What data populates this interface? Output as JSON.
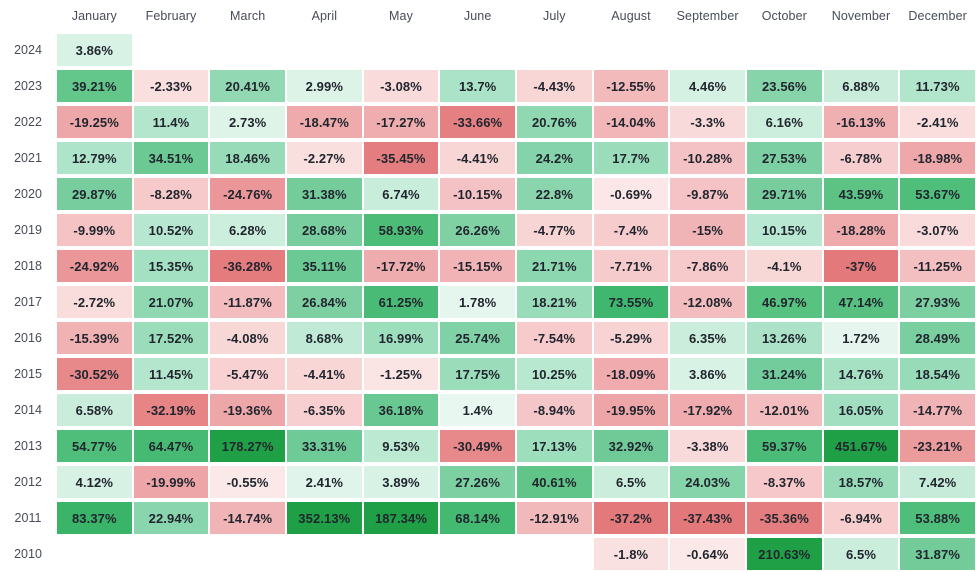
{
  "chart_data": {
    "type": "heatmap",
    "title": "",
    "value_suffix": "%",
    "columns": [
      "January",
      "February",
      "March",
      "April",
      "May",
      "June",
      "July",
      "August",
      "September",
      "October",
      "November",
      "December"
    ],
    "rows": [
      "2024",
      "2023",
      "2022",
      "2021",
      "2020",
      "2019",
      "2018",
      "2017",
      "2016",
      "2015",
      "2014",
      "2013",
      "2012",
      "2011",
      "2010"
    ],
    "values": [
      [
        3.86,
        null,
        null,
        null,
        null,
        null,
        null,
        null,
        null,
        null,
        null,
        null
      ],
      [
        39.21,
        -2.33,
        20.41,
        2.99,
        -3.08,
        13.7,
        -4.43,
        -12.55,
        4.46,
        23.56,
        6.88,
        11.73
      ],
      [
        -19.25,
        11.4,
        2.73,
        -18.47,
        -17.27,
        -33.66,
        20.76,
        -14.04,
        -3.3,
        6.16,
        -16.13,
        -2.41
      ],
      [
        12.79,
        34.51,
        18.46,
        -2.27,
        -35.45,
        -4.41,
        24.2,
        17.7,
        -10.28,
        27.53,
        -6.78,
        -18.98
      ],
      [
        29.87,
        -8.28,
        -24.76,
        31.38,
        6.74,
        -10.15,
        22.8,
        -0.69,
        -9.87,
        29.71,
        43.59,
        53.67
      ],
      [
        -9.99,
        10.52,
        6.28,
        28.68,
        58.93,
        26.26,
        -4.77,
        -7.4,
        -15,
        10.15,
        -18.28,
        -3.07
      ],
      [
        -24.92,
        15.35,
        -36.28,
        35.11,
        -17.72,
        -15.15,
        21.71,
        -7.71,
        -7.86,
        -4.1,
        -37,
        -11.25
      ],
      [
        -2.72,
        21.07,
        -11.87,
        26.84,
        61.25,
        1.78,
        18.21,
        73.55,
        -12.08,
        46.97,
        47.14,
        27.93
      ],
      [
        -15.39,
        17.52,
        -4.08,
        8.68,
        16.99,
        25.74,
        -7.54,
        -5.29,
        6.35,
        13.26,
        1.72,
        28.49
      ],
      [
        -30.52,
        11.45,
        -5.47,
        -4.41,
        -1.25,
        17.75,
        10.25,
        -18.09,
        3.86,
        31.24,
        14.76,
        18.54
      ],
      [
        6.58,
        -32.19,
        -19.36,
        -6.35,
        36.18,
        1.4,
        -8.94,
        -19.95,
        -17.92,
        -12.01,
        16.05,
        -14.77
      ],
      [
        54.77,
        64.47,
        178.27,
        33.31,
        9.53,
        -30.49,
        17.13,
        32.92,
        -3.38,
        59.37,
        451.67,
        -23.21
      ],
      [
        4.12,
        -19.99,
        -0.55,
        2.41,
        3.89,
        27.26,
        40.61,
        6.5,
        24.03,
        -8.37,
        18.57,
        7.42
      ],
      [
        83.37,
        22.94,
        -14.74,
        352.13,
        187.34,
        68.14,
        -12.91,
        -37.2,
        -37.43,
        -35.36,
        -6.94,
        53.88
      ],
      [
        null,
        null,
        null,
        null,
        null,
        null,
        null,
        -1.8,
        -0.64,
        210.63,
        6.5,
        31.87
      ]
    ],
    "color_scale": {
      "empty": "#ffffff",
      "text": "#21262e",
      "header_text": "#474c57",
      "positive_stops": [
        [
          0,
          "#f1faf6"
        ],
        [
          3,
          "#ddf3e8"
        ],
        [
          6,
          "#cdeedd"
        ],
        [
          10,
          "#b9e8d1"
        ],
        [
          15,
          "#a5e1c3"
        ],
        [
          20,
          "#92d9b4"
        ],
        [
          26,
          "#80d1a5"
        ],
        [
          33,
          "#6fca97"
        ],
        [
          42,
          "#5ec486"
        ],
        [
          52,
          "#52bf7c"
        ],
        [
          65,
          "#46ba73"
        ],
        [
          80,
          "#3bb56a"
        ],
        [
          100,
          "#30ae5e"
        ],
        [
          130,
          "#28a854"
        ],
        [
          180,
          "#20a046"
        ]
      ],
      "negative_stops": [
        [
          0,
          "#fcebeb"
        ],
        [
          3,
          "#f9dbdb"
        ],
        [
          7,
          "#f7cdce"
        ],
        [
          12,
          "#f3bcbe"
        ],
        [
          18,
          "#efabad"
        ],
        [
          25,
          "#eb9698"
        ],
        [
          32,
          "#e68486"
        ],
        [
          38,
          "#e37779"
        ]
      ]
    }
  }
}
